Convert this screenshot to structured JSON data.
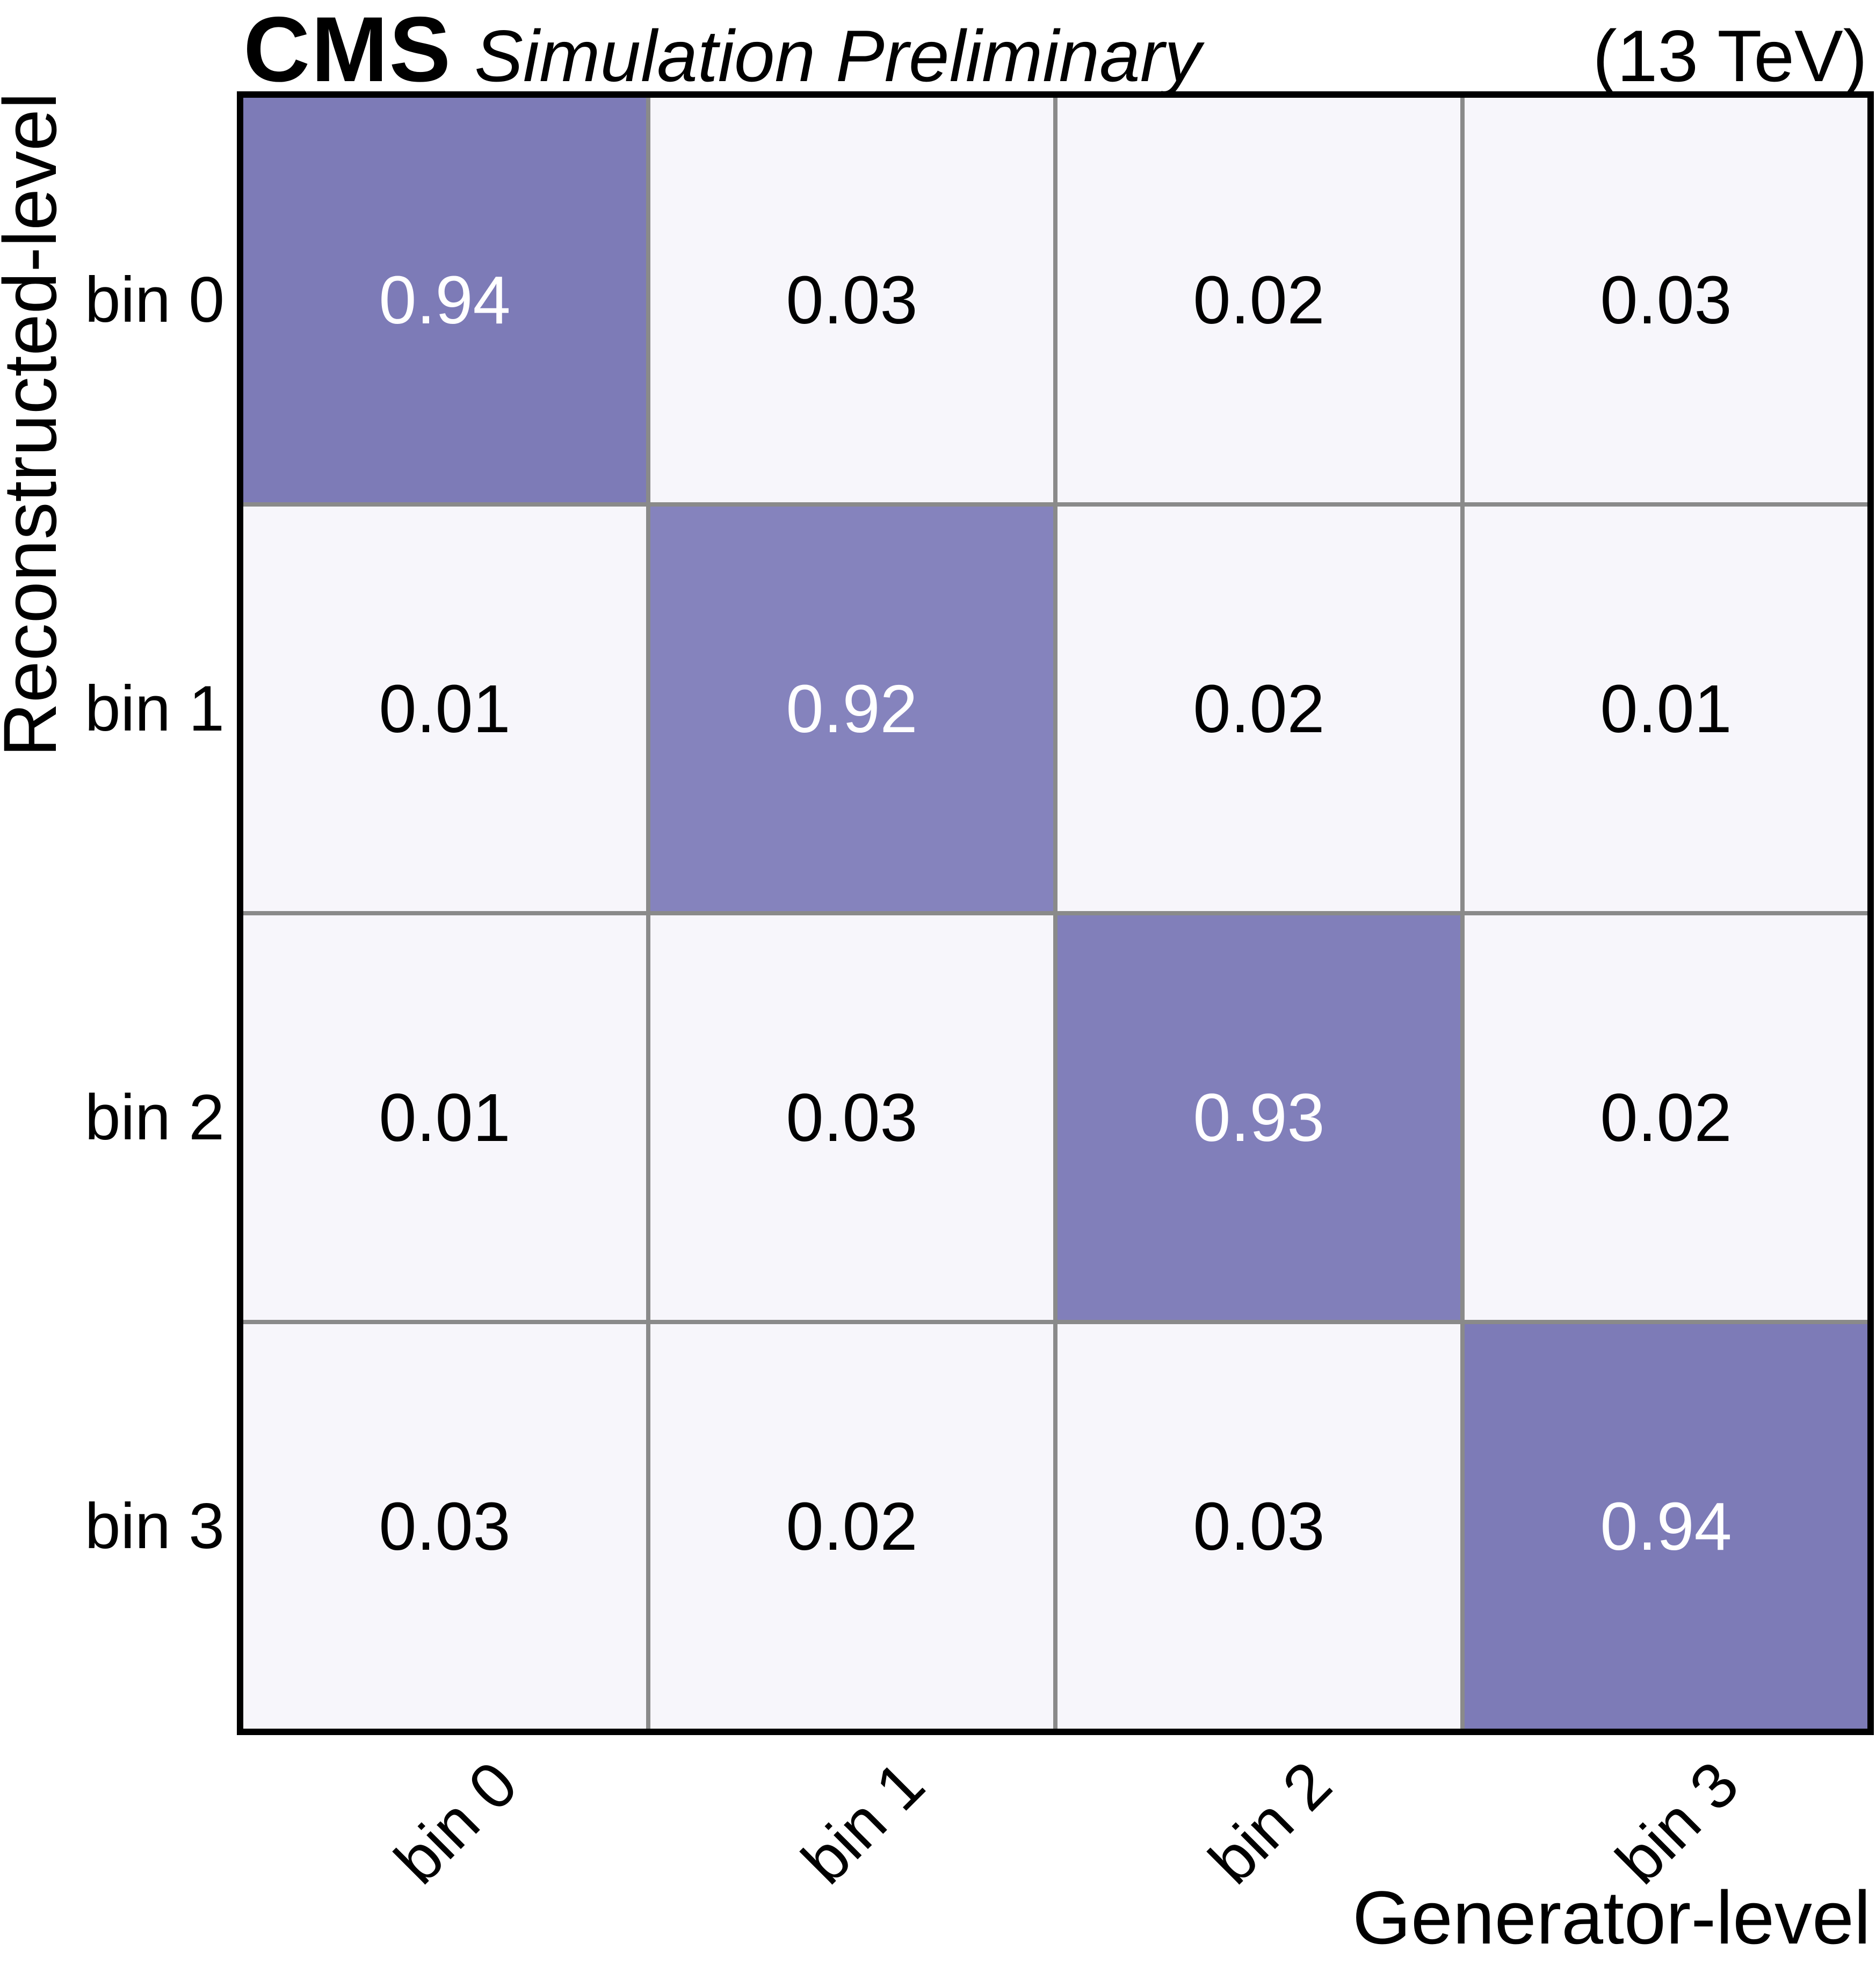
{
  "header": {
    "experiment": "CMS",
    "label": "Simulation Preliminary",
    "energy": "(13 TeV)"
  },
  "chart_data": {
    "type": "heatmap",
    "xlabel": "Generator-level",
    "ylabel": "Reconstructed-level",
    "x_categories": [
      "bin 0",
      "bin 1",
      "bin 2",
      "bin 3"
    ],
    "y_categories": [
      "bin 0",
      "bin 1",
      "bin 2",
      "bin 3"
    ],
    "rows": [
      [
        0.94,
        0.03,
        0.02,
        0.03
      ],
      [
        0.01,
        0.92,
        0.02,
        0.01
      ],
      [
        0.01,
        0.03,
        0.93,
        0.02
      ],
      [
        0.03,
        0.02,
        0.03,
        0.94
      ]
    ],
    "cell_text": [
      [
        "0.94",
        "0.03",
        "0.02",
        "0.03"
      ],
      [
        "0.01",
        "0.92",
        "0.02",
        "0.01"
      ],
      [
        "0.01",
        "0.03",
        "0.93",
        "0.02"
      ],
      [
        "0.03",
        "0.02",
        "0.03",
        "0.94"
      ]
    ],
    "legend_position": "none",
    "grid": "on",
    "colors": {
      "diagonal": "#807EB9",
      "diagonal_by_value": {
        "0.92": "#8583BD",
        "0.93": "#817FBA",
        "0.94": "#7D7BB7"
      },
      "off_diagonal": "#F7F6FB",
      "grid_line": "#8A8A8A",
      "frame": "#000000",
      "text_on_dark": "#FFFFFF",
      "text_on_light": "#000000"
    }
  }
}
